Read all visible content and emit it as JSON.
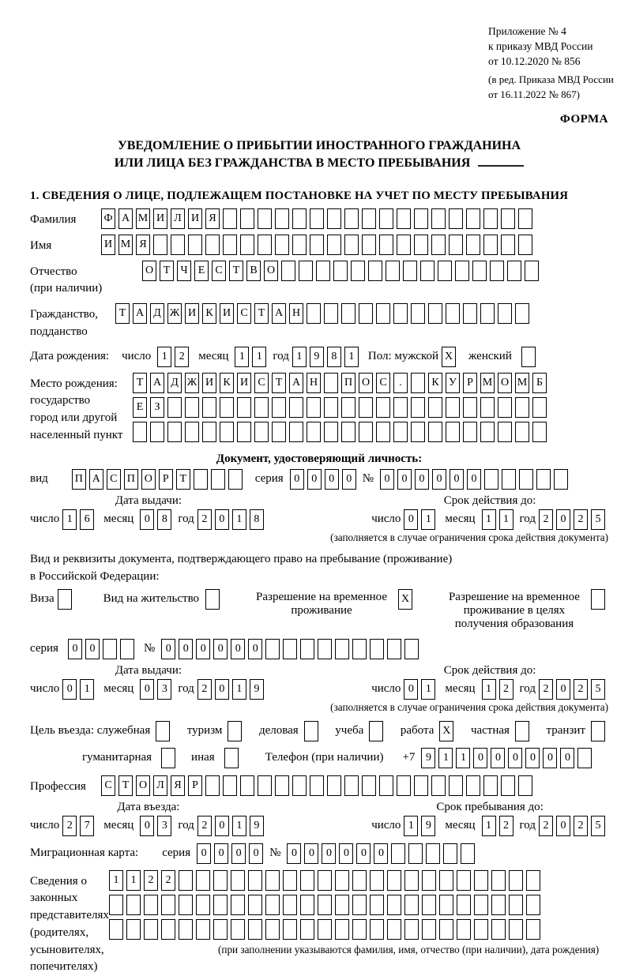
{
  "header": {
    "appendix": [
      "Приложение № 4",
      "к приказу МВД России",
      "от 10.12.2020 № 856"
    ],
    "revision": [
      "(в ред. Приказа МВД России",
      "от 16.11.2022 № 867)"
    ],
    "form_marker": "ФОРМА"
  },
  "title": {
    "line1": "УВЕДОМЛЕНИЕ О ПРИБЫТИИ ИНОСТРАННОГО ГРАЖДАНИНА",
    "line2": "ИЛИ ЛИЦА БЕЗ ГРАЖДАНСТВА В МЕСТО ПРЕБЫВАНИЯ",
    "section1": "1. СВЕДЕНИЯ О ЛИЦЕ, ПОДЛЕЖАЩЕМ ПОСТАНОВКЕ НА УЧЕТ ПО МЕСТУ ПРЕБЫВАНИЯ"
  },
  "labels": {
    "surname": "Фамилия",
    "name": "Имя",
    "patronymic_l1": "Отчество",
    "patronymic_l2": "(при наличии)",
    "citizenship_l1": "Гражданство,",
    "citizenship_l2": "подданство",
    "birth_date": "Дата рождения:",
    "day": "число",
    "month": "месяц",
    "year": "год",
    "sex_male": "Пол: мужской",
    "sex_female": "женский",
    "birthplace_l1": "Место рождения:",
    "birthplace_l2": "государство",
    "birthplace_l3": "город или другой",
    "birthplace_l4": "населенный пункт",
    "id_doc_heading": "Документ, удостоверяющий личность:",
    "doc_type": "вид",
    "series": "серия",
    "number": "№",
    "issue_date": "Дата выдачи:",
    "valid_until": "Срок действия до:",
    "limited_note": "(заполняется в случае ограничения срока действия документа)",
    "resident_doc_l1": "Вид и реквизиты документа, подтверждающего право на пребывание (проживание)",
    "resident_doc_l2": "в Российской Федерации:",
    "visa": "Виза",
    "residence_permit": "Вид на жительство",
    "temp_residence": "Разрешение на временное проживание",
    "temp_residence_edu": "Разрешение на временное проживание в целях получения образования",
    "purpose_official": "Цель въезда: служебная",
    "purpose_tourism": "туризм",
    "purpose_business": "деловая",
    "purpose_study": "учеба",
    "purpose_work": "работа",
    "purpose_private": "частная",
    "purpose_transit": "транзит",
    "purpose_humanitarian": "гуманитарная",
    "purpose_other": "иная",
    "phone": "Телефон (при наличии)",
    "phone_prefix": "+7",
    "profession": "Профессия",
    "entry_date": "Дата въезда:",
    "stay_until": "Срок пребывания до:",
    "migration_card": "Миграционная карта:",
    "rep_l1": "Сведения о",
    "rep_l2": "законных",
    "rep_l3": "представителях",
    "rep_l4": "(родителях,",
    "rep_l5": "усыновителях,",
    "rep_l6": "попечителях)",
    "rep_note": "(при заполнении указываются фамилия, имя, отчество (при наличии), дата рождения)"
  },
  "grids": {
    "surname": {
      "count": 25,
      "value": "ФАМИЛИЯ"
    },
    "name": {
      "count": 25,
      "value": "ИМЯ"
    },
    "patronymic": {
      "count": 23,
      "value": "ОТЧЕСТВО"
    },
    "citizenship": {
      "count": 24,
      "value": "ТАДЖИКИСТАН"
    },
    "birth_day": {
      "count": 2,
      "value": "12"
    },
    "birth_month": {
      "count": 2,
      "value": "11"
    },
    "birth_year": {
      "count": 4,
      "value": "1981"
    },
    "sex_male": {
      "count": 1,
      "value": "X"
    },
    "sex_female": {
      "count": 1,
      "value": ""
    },
    "birthplace1": {
      "count": 24,
      "value": "ТАДЖИКИСТАН ПОС. КУРМОМБ"
    },
    "birthplace2": {
      "count": 24,
      "value": "ЕЗ"
    },
    "birthplace3": {
      "count": 24,
      "value": ""
    },
    "id_type": {
      "count": 10,
      "value": "ПАСПОРТ"
    },
    "id_series": {
      "count": 4,
      "value": "0000"
    },
    "id_number": {
      "count": 11,
      "value": "000000"
    },
    "id_issue_day": {
      "count": 2,
      "value": "16"
    },
    "id_issue_month": {
      "count": 2,
      "value": "08"
    },
    "id_issue_year": {
      "count": 4,
      "value": "2018"
    },
    "id_valid_day": {
      "count": 2,
      "value": "01"
    },
    "id_valid_month": {
      "count": 2,
      "value": "11"
    },
    "id_valid_year": {
      "count": 4,
      "value": "2025"
    },
    "cb_visa": {
      "count": 1,
      "value": ""
    },
    "cb_residence": {
      "count": 1,
      "value": ""
    },
    "cb_temp": {
      "count": 1,
      "value": "X"
    },
    "cb_temp_edu": {
      "count": 1,
      "value": ""
    },
    "permit_series": {
      "count": 4,
      "value": "00"
    },
    "permit_number": {
      "count": 15,
      "value": "000000"
    },
    "permit_issue_day": {
      "count": 2,
      "value": "01"
    },
    "permit_issue_month": {
      "count": 2,
      "value": "03"
    },
    "permit_issue_year": {
      "count": 4,
      "value": "2019"
    },
    "permit_valid_day": {
      "count": 2,
      "value": "01"
    },
    "permit_valid_month": {
      "count": 2,
      "value": "12"
    },
    "permit_valid_year": {
      "count": 4,
      "value": "2025"
    },
    "cb_official": {
      "count": 1,
      "value": ""
    },
    "cb_tourism": {
      "count": 1,
      "value": ""
    },
    "cb_business": {
      "count": 1,
      "value": ""
    },
    "cb_study": {
      "count": 1,
      "value": ""
    },
    "cb_work": {
      "count": 1,
      "value": "X"
    },
    "cb_private": {
      "count": 1,
      "value": ""
    },
    "cb_transit": {
      "count": 1,
      "value": ""
    },
    "cb_humanitarian": {
      "count": 1,
      "value": ""
    },
    "cb_other": {
      "count": 1,
      "value": ""
    },
    "phone": {
      "count": 10,
      "value": "911000000"
    },
    "profession": {
      "count": 25,
      "value": "СТОЛЯР"
    },
    "entry_day": {
      "count": 2,
      "value": "27"
    },
    "entry_month": {
      "count": 2,
      "value": "03"
    },
    "entry_year": {
      "count": 4,
      "value": "2019"
    },
    "stay_day": {
      "count": 2,
      "value": "19"
    },
    "stay_month": {
      "count": 2,
      "value": "12"
    },
    "stay_year": {
      "count": 4,
      "value": "2025"
    },
    "migr_series": {
      "count": 4,
      "value": "0000"
    },
    "migr_number": {
      "count": 11,
      "value": "000000"
    },
    "rep1": {
      "count": 25,
      "value": "1122"
    },
    "rep2": {
      "count": 25,
      "value": ""
    },
    "rep3": {
      "count": 25,
      "value": ""
    }
  }
}
